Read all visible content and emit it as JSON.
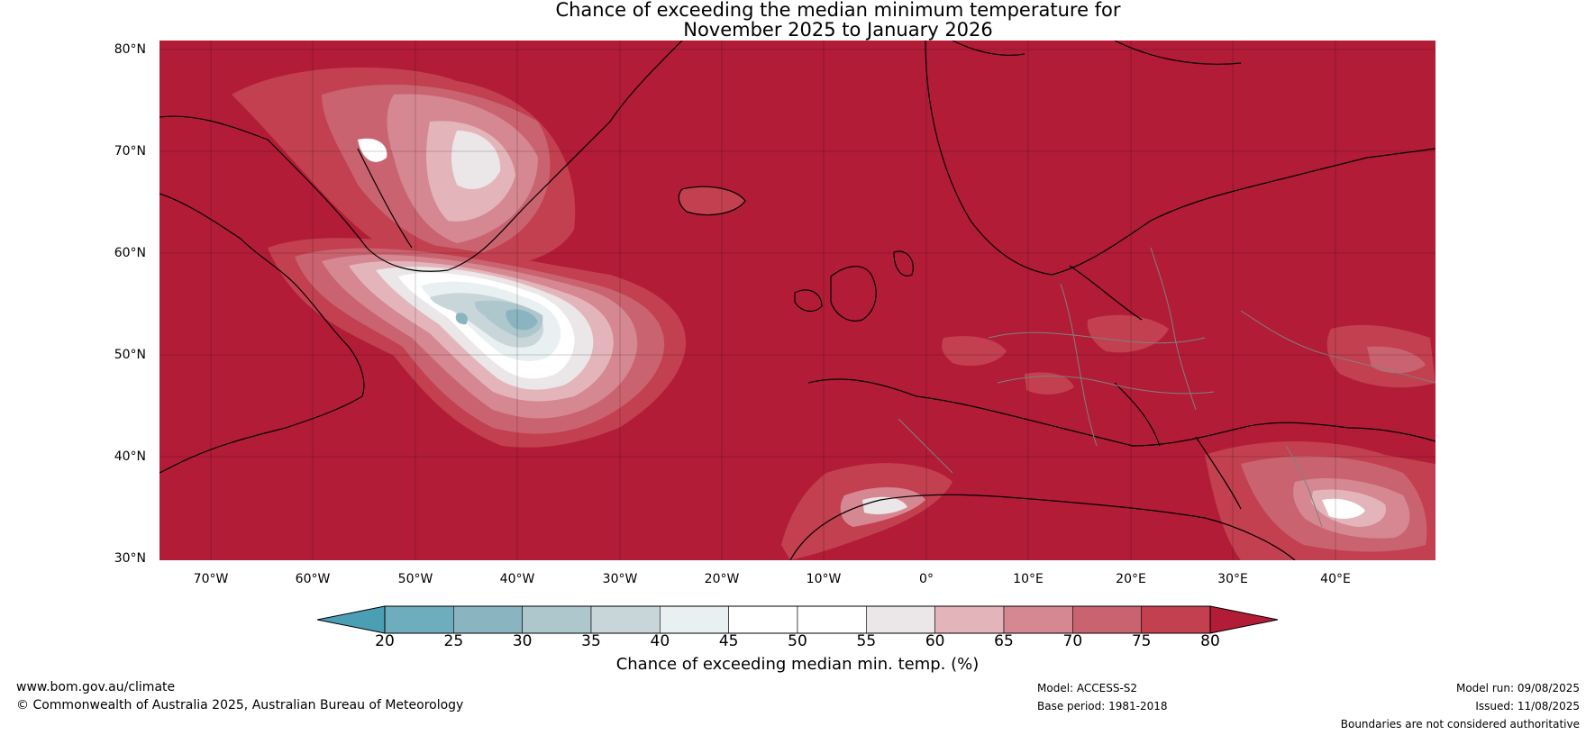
{
  "title": {
    "line1": "Chance of exceeding the median minimum temperature for",
    "line2": "November 2025 to January 2026"
  },
  "map": {
    "latitude_labels": [
      "80°N",
      "70°N",
      "60°N",
      "50°N",
      "40°N",
      "30°N"
    ],
    "longitude_labels": [
      "70°W",
      "60°W",
      "50°W",
      "40°W",
      "30°W",
      "20°W",
      "10°W",
      "0°",
      "10°E",
      "20°E",
      "30°E",
      "40°E"
    ],
    "colors": {
      "above_80": "#b21c37",
      "band_75_80": "#c2404f",
      "band_70_75": "#ca6370",
      "band_65_70": "#d58891",
      "band_60_65": "#e3b5bb",
      "band_55_60": "#ebe6e8",
      "band_50_55": "#ffffff",
      "band_40_45": "#e9f0f1",
      "band_35_40": "#c8d6da",
      "band_30_35": "#aec7cd",
      "band_25_30": "#8bb4c1",
      "coastline": "#000000",
      "borders": "#808080"
    }
  },
  "colorbar": {
    "ticks": [
      "20",
      "25",
      "30",
      "35",
      "40",
      "45",
      "50",
      "55",
      "60",
      "65",
      "70",
      "75",
      "80"
    ],
    "colors": [
      "#4a9fb5",
      "#6dadbd",
      "#8bb4c1",
      "#aec7cd",
      "#c8d6da",
      "#e9f0f1",
      "#ffffff",
      "#ffffff",
      "#ebe6e8",
      "#e3b5bb",
      "#d58891",
      "#ca6370",
      "#c2404f",
      "#b21c37"
    ],
    "label": "Chance of exceeding median min. temp. (%)"
  },
  "footer": {
    "website": "www.bom.gov.au/climate",
    "copyright": "© Commonwealth of Australia 2025, Australian Bureau of Meteorology",
    "model": "Model: ACCESS-S2",
    "base_period": "Base period: 1981-2018",
    "model_run": "Model run: 09/08/2025",
    "issued": "Issued: 11/08/2025",
    "disclaimer": "Boundaries are not considered authoritative"
  }
}
